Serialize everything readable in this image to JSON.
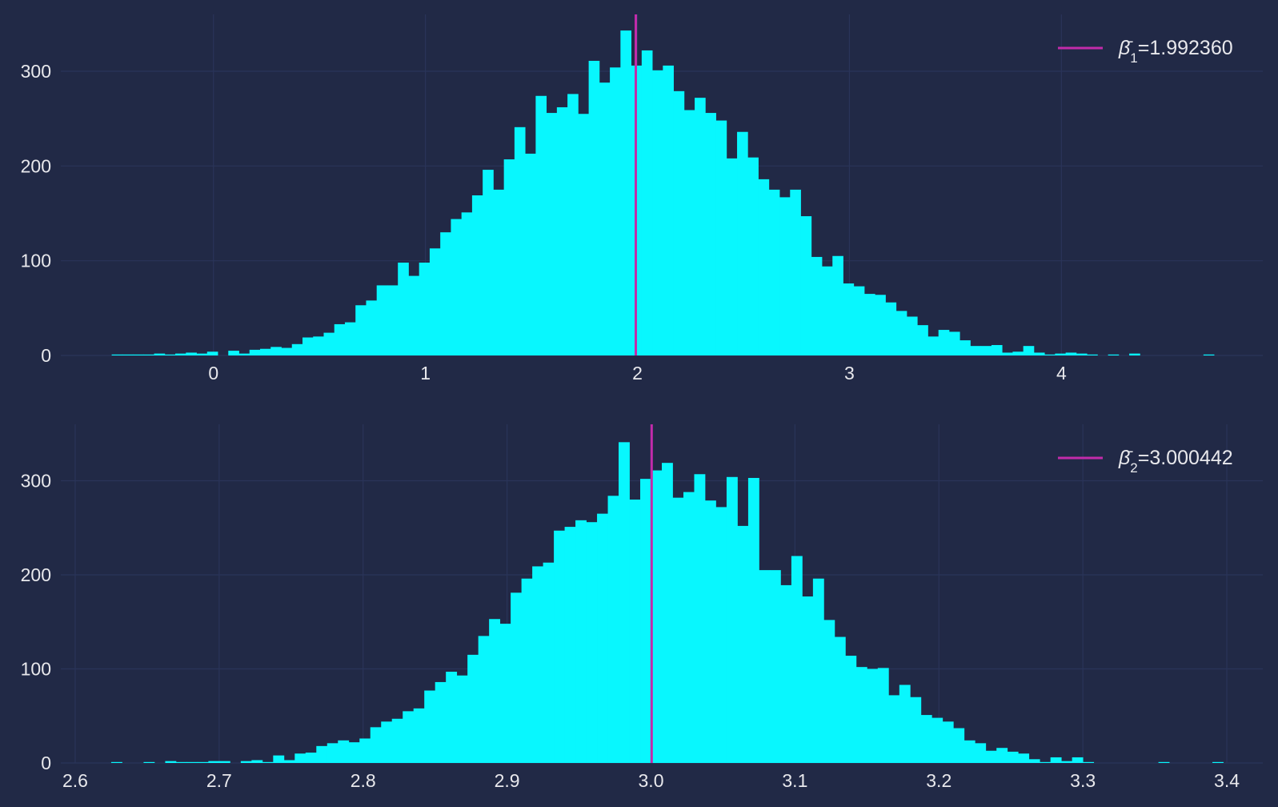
{
  "theme": {
    "background": "#212946",
    "grid": "#2A3459",
    "bar": "#08F7FE",
    "mean_line": "#C22BAA",
    "text": "#E8E8EC"
  },
  "chart_data": [
    {
      "type": "bar",
      "subtype": "histogram",
      "title": "",
      "xlabel": "",
      "ylabel": "",
      "xlim": [
        -0.72,
        4.95
      ],
      "ylim": [
        0,
        360
      ],
      "xticks": [
        0,
        1,
        2,
        3,
        4
      ],
      "xtick_labels": [
        "0",
        "1",
        "2",
        "3",
        "4"
      ],
      "yticks": [
        0,
        100,
        200,
        300
      ],
      "ytick_labels": [
        "0",
        "100",
        "200",
        "300"
      ],
      "grid": true,
      "legend_position": "top-right",
      "bin_start": -0.48,
      "bin_width": 0.05,
      "counts": [
        1,
        1,
        1,
        1,
        2,
        1,
        2,
        3,
        2,
        4,
        0,
        5,
        2,
        6,
        7,
        9,
        8,
        12,
        19,
        20,
        24,
        33,
        35,
        53,
        58,
        74,
        74,
        98,
        84,
        98,
        113,
        130,
        144,
        151,
        169,
        196,
        175,
        207,
        241,
        213,
        274,
        256,
        262,
        276,
        255,
        311,
        288,
        304,
        343,
        306,
        322,
        301,
        306,
        279,
        259,
        272,
        256,
        248,
        208,
        236,
        209,
        186,
        175,
        167,
        175,
        147,
        104,
        94,
        105,
        76,
        73,
        65,
        64,
        56,
        47,
        41,
        32,
        20,
        27,
        25,
        16,
        10,
        10,
        11,
        3,
        4,
        10,
        3,
        1,
        2,
        3,
        2,
        1,
        0,
        1,
        0,
        2,
        0,
        0,
        0,
        0,
        0,
        0,
        1
      ],
      "mean": 1.99236,
      "legend": {
        "prefix": "β̄",
        "subscript": "1",
        "value_text": "=1.992360"
      }
    },
    {
      "type": "bar",
      "subtype": "histogram",
      "title": "",
      "xlabel": "",
      "ylabel": "",
      "xlim": [
        2.59,
        3.425
      ],
      "ylim": [
        0,
        360
      ],
      "xticks": [
        2.6,
        2.7,
        2.8,
        2.9,
        3.0,
        3.1,
        3.2,
        3.3,
        3.4
      ],
      "xtick_labels": [
        "2.6",
        "2.7",
        "2.8",
        "2.9",
        "3.0",
        "3.1",
        "3.2",
        "3.3",
        "3.4"
      ],
      "yticks": [
        0,
        100,
        200,
        300
      ],
      "ytick_labels": [
        "0",
        "100",
        "200",
        "300"
      ],
      "grid": true,
      "legend_position": "top-right",
      "bin_start": 2.625,
      "bin_width": 0.0075,
      "counts": [
        1,
        0,
        0,
        1,
        0,
        2,
        1,
        1,
        1,
        2,
        2,
        0,
        2,
        3,
        1,
        8,
        3,
        10,
        11,
        18,
        21,
        24,
        22,
        26,
        38,
        44,
        47,
        55,
        58,
        77,
        86,
        97,
        93,
        115,
        135,
        153,
        148,
        181,
        196,
        209,
        213,
        247,
        251,
        258,
        256,
        265,
        284,
        341,
        280,
        302,
        311,
        319,
        282,
        288,
        307,
        279,
        272,
        304,
        252,
        303,
        205,
        205,
        189,
        220,
        177,
        196,
        152,
        134,
        114,
        102,
        100,
        101,
        72,
        83,
        70,
        51,
        48,
        44,
        37,
        24,
        21,
        13,
        16,
        12,
        10,
        4,
        1,
        6,
        2,
        6,
        1,
        0,
        0,
        0,
        0,
        0,
        0,
        1,
        0,
        0,
        0,
        0,
        1,
        0
      ],
      "mean": 3.000442,
      "legend": {
        "prefix": "β̄",
        "subscript": "2",
        "value_text": "=3.000442"
      }
    }
  ]
}
